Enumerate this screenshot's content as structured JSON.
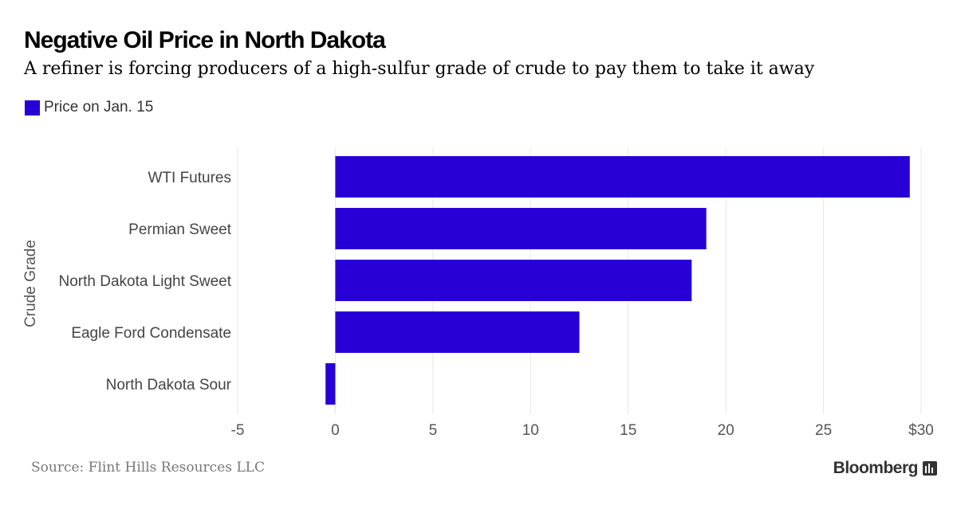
{
  "header": {
    "title": "Negative Oil Price in North Dakota",
    "subtitle": "A refiner is forcing producers of a high-sulfur grade of crude to pay them to take it away"
  },
  "legend": {
    "label": "Price on Jan. 15",
    "color": "#2800d7"
  },
  "footer": {
    "source": "Source: Flint Hills Resources LLC",
    "brand": "Bloomberg",
    "brand_icon": "bloomberg-terminal-icon"
  },
  "chart_data": {
    "type": "bar",
    "orientation": "horizontal",
    "categories": [
      "WTI Futures",
      "Permian Sweet",
      "North Dakota Light Sweet",
      "Eagle Ford Condensate",
      "North Dakota Sour"
    ],
    "series": [
      {
        "name": "Price on Jan. 15",
        "values": [
          29.42,
          19.0,
          18.25,
          12.5,
          -0.5
        ],
        "color": "#2800d7"
      }
    ],
    "ylabel": "Crude Grade",
    "xlabel": "",
    "xlim": [
      -5,
      30
    ],
    "x_ticks": [
      -5,
      0,
      5,
      10,
      15,
      20,
      25,
      30
    ],
    "x_tick_labels": [
      "-5",
      "0",
      "5",
      "10",
      "15",
      "20",
      "25",
      "$30"
    ],
    "grid": true,
    "legend_position": "top-left"
  }
}
